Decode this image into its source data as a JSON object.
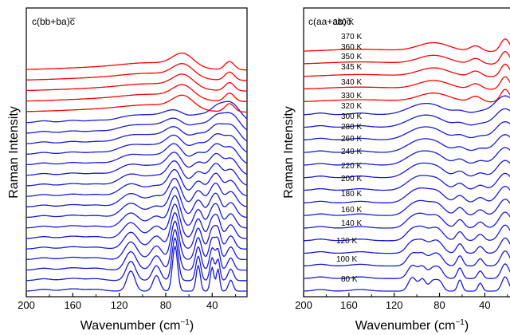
{
  "colors": {
    "high_temperature": "#ff0000",
    "low_temperature": "#1a1adc",
    "axis": "#000000"
  },
  "chart_data": [
    {
      "type": "line",
      "annotation": "c(bb+ba)c̅",
      "xlabel": "Wavenumber (cm⁻¹)",
      "ylabel": "Raman Intensity",
      "xlim": [
        200,
        10
      ],
      "x_reversed": true,
      "xticks": [
        200,
        160,
        120,
        80,
        40
      ],
      "x_tick_labels": [
        "200",
        "160",
        "120",
        "80",
        "40"
      ],
      "y_ticks_shown": false,
      "n_traces": 22,
      "n_red_traces": 5,
      "temperature_labels": []
    },
    {
      "type": "line",
      "annotation": "c(aa+ab)c̅",
      "xlabel": "Wavenumber (cm⁻¹)",
      "ylabel": "Raman Intensity",
      "xlim": [
        200,
        10
      ],
      "x_reversed": true,
      "xticks": [
        200,
        160,
        120,
        80,
        40
      ],
      "x_tick_labels": [
        "200",
        "160",
        "120",
        "80",
        "40"
      ],
      "y_ticks_shown": false,
      "n_traces": 20,
      "n_red_traces": 5,
      "temperature_labels": [
        "380 K",
        "370 K",
        "360 K",
        "350 K",
        "345 K",
        "340 K",
        "330 K",
        "320 K",
        "300 K",
        "280 K",
        "260 K",
        "240 K",
        "220 K",
        "200 K",
        "180 K",
        "160 K",
        "140 K",
        "120 K",
        "100 K",
        "80 K"
      ]
    }
  ]
}
